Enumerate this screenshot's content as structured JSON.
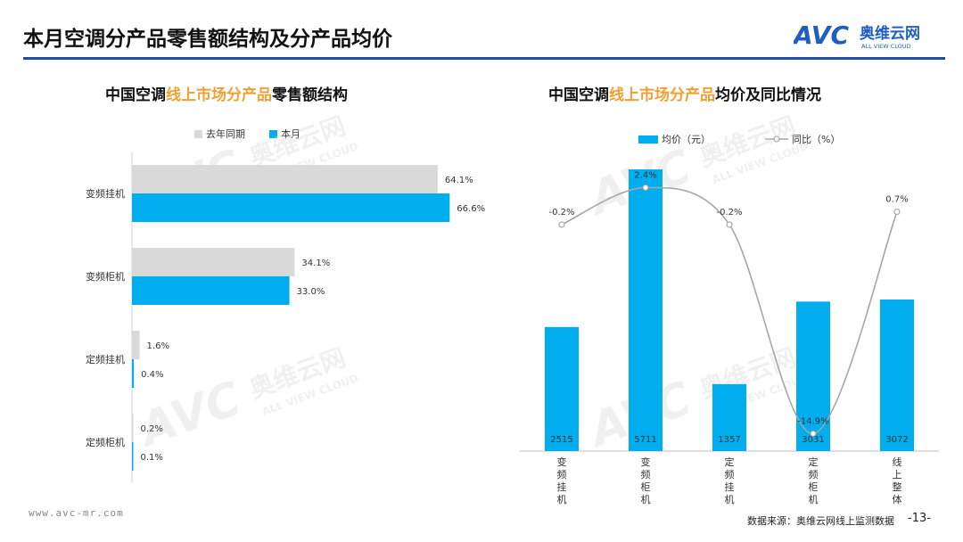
{
  "header": {
    "title": "本月空调分产品零售额结构及分产品均价",
    "logo": {
      "mark": "AVC",
      "cn": "奥维云网",
      "en": "ALL VIEW CLOUD"
    }
  },
  "watermark": {
    "mark": "AVC",
    "cn": "奥维云网",
    "en": "ALL VIEW CLOUD"
  },
  "footer": {
    "url": "www.avc-mr.com",
    "source": "数据来源：奥维云网线上监测数据",
    "page": "-13-"
  },
  "colors": {
    "blue": "#00aeef",
    "gray": "#d9d9d9",
    "line": "#a6a6a6",
    "accent": "#f0a030",
    "rule": "#1f4e9c"
  },
  "chart_data": [
    {
      "type": "bar",
      "orientation": "horizontal",
      "title": {
        "prefix": "中国空调",
        "highlight": "线上市场分产品",
        "suffix": "零售额结构"
      },
      "categories": [
        "变频挂机",
        "变频柜机",
        "定频挂机",
        "定频柜机"
      ],
      "series": [
        {
          "name": "去年同期",
          "values": [
            64.1,
            34.1,
            1.6,
            0.2
          ],
          "labels": [
            "64.1%",
            "34.1%",
            "1.6%",
            "0.2%"
          ]
        },
        {
          "name": "本月",
          "values": [
            66.6,
            33.0,
            0.4,
            0.1
          ],
          "labels": [
            "66.6%",
            "33.0%",
            "0.4%",
            "0.1%"
          ]
        }
      ],
      "xlim": [
        0,
        100
      ],
      "legend": "top-left",
      "grid": false
    },
    {
      "type": "bar+line",
      "title": {
        "prefix": "中国空调",
        "highlight": "线上市场分产品",
        "suffix": "均价及同比情况"
      },
      "categories": [
        "变频挂机",
        "变频柜机",
        "定频挂机",
        "定频柜机",
        "线上整体"
      ],
      "bar_series": {
        "name": "均价（元）",
        "values": [
          2515,
          5711,
          1357,
          3031,
          3072
        ],
        "labels": [
          "2515",
          "5711",
          "1357",
          "3031",
          "3072"
        ]
      },
      "line_series": {
        "name": "同比（%）",
        "values": [
          -0.2,
          2.4,
          -0.2,
          -14.9,
          0.7
        ],
        "labels": [
          "-0.2%",
          "2.4%",
          "-0.2%",
          "-14.9%",
          "0.7%"
        ]
      },
      "bar_ylim": [
        0,
        6000
      ],
      "line_ylim": [
        -16,
        6
      ],
      "legend": "top",
      "grid": false
    }
  ]
}
